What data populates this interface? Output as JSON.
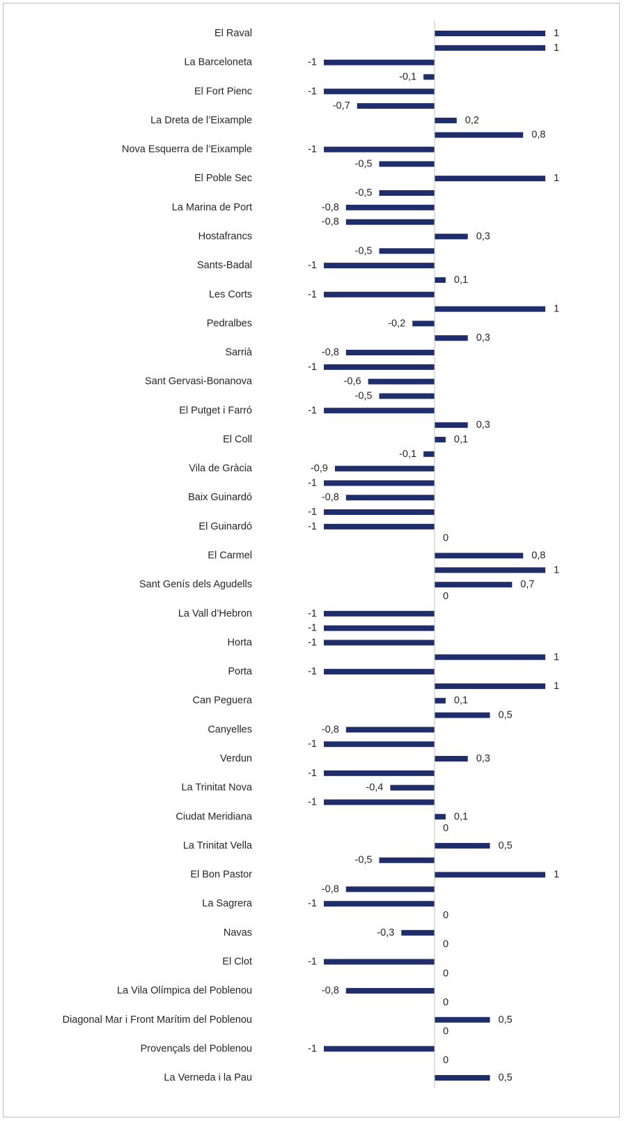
{
  "chart_data": {
    "type": "bar",
    "orientation": "horizontal",
    "grid": false,
    "legend": "none",
    "bar_color": "#1f2d6b",
    "categories": [
      "El Raval",
      "",
      "La Barceloneta",
      "",
      "El Fort Pienc",
      "",
      "La Dreta de l’Eixample",
      "",
      "Nova Esquerra de l’Eixample",
      "",
      "El Poble Sec",
      "",
      "La Marina de Port",
      "",
      "Hostafrancs",
      "",
      "Sants-Badal",
      "",
      "Les Corts",
      "",
      "Pedralbes",
      "",
      "Sarrià",
      "",
      "Sant Gervasi-Bonanova",
      "",
      "El Putget i Farró",
      "",
      "El Coll",
      "",
      "Vila de Gràcia",
      "",
      "Baix Guinardó",
      "",
      "El Guinardó",
      "",
      "El Carmel",
      "",
      "Sant Genís dels Agudells",
      "",
      "La Vall d’Hebron",
      "",
      "Horta",
      "",
      "Porta",
      "",
      "Can Peguera",
      "",
      "Canyelles",
      "",
      "Verdun",
      "",
      "La Trinitat Nova",
      "",
      "Ciudat Meridiana",
      "",
      "La Trinitat Vella",
      "",
      "El Bon Pastor",
      "",
      "La Sagrera",
      "",
      "Navas",
      "",
      "El Clot",
      "",
      "La Vila Olímpica del Poblenou",
      "",
      "Diagonal Mar i Front Marítim del Poblenou",
      "",
      "Provençals del Poblenou",
      "",
      "La Verneda i la Pau"
    ],
    "values": [
      1,
      1,
      -1,
      -0.1,
      -1,
      -0.7,
      0.2,
      0.8,
      -1,
      -0.5,
      1,
      -0.5,
      -0.8,
      -0.8,
      0.3,
      -0.5,
      -1,
      0.1,
      -1,
      1,
      -0.2,
      0.3,
      -0.8,
      -1,
      -0.6,
      -0.5,
      -1,
      0.3,
      0.1,
      -0.1,
      -0.9,
      -1,
      -0.8,
      -1,
      -1,
      0,
      0.8,
      1,
      0.7,
      0,
      -1,
      -1,
      -1,
      1,
      -1,
      1,
      0.1,
      0.5,
      -0.8,
      -1,
      0.3,
      -1,
      -0.4,
      -1,
      0.1,
      0,
      0.5,
      -0.5,
      1,
      -0.8,
      -1,
      0,
      -0.3,
      0,
      -1,
      0,
      -0.8,
      0,
      0.5,
      0,
      -1,
      0,
      0.5
    ],
    "value_labels": [
      "1",
      "1",
      "-1",
      "-0,1",
      "-1",
      "-0,7",
      "0,2",
      "0,8",
      "-1",
      "-0,5",
      "1",
      "-0,5",
      "-0,8",
      "-0,8",
      "0,3",
      "-0,5",
      "-1",
      "0,1",
      "-1",
      "1",
      "-0,2",
      "0,3",
      "-0,8",
      "-1",
      "-0,6",
      "-0,5",
      "-1",
      "0,3",
      "0,1",
      "-0,1",
      "-0,9",
      "-1",
      "-0,8",
      "-1",
      "-1",
      "0",
      "0,8",
      "1",
      "0,7",
      "0",
      "-1",
      "-1",
      "-1",
      "1",
      "-1",
      "1",
      "0,1",
      "0,5",
      "-0,8",
      "-1",
      "0,3",
      "-1",
      "-0,4",
      "-1",
      "0,1",
      "0",
      "0,5",
      "-0,5",
      "1",
      "-0,8",
      "-1",
      "0",
      "-0,3",
      "0",
      "-1",
      "0",
      "-0,8",
      "0",
      "0,5",
      "0",
      "-1",
      "0",
      "0,5"
    ],
    "xlim": [
      -1,
      1
    ]
  }
}
